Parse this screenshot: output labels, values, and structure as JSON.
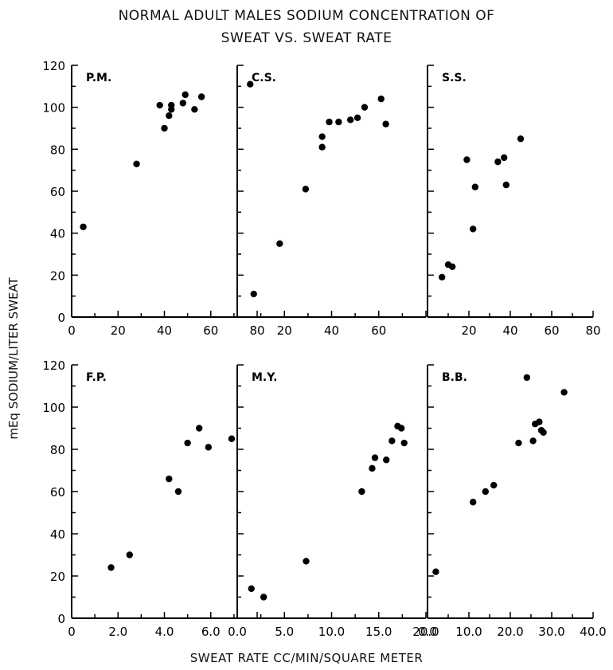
{
  "title_line1": "NORMAL ADULT MALES SODIUM CONCENTRATION OF",
  "title_line2": "SWEAT VS. SWEAT RATE",
  "ylabel": "mEq SODIUM/LITER SWEAT",
  "xlabel": "SWEAT RATE CC/MIN/SQUARE METER",
  "chart_data": [
    {
      "type": "scatter",
      "label": "P.M.",
      "xlim": [
        0,
        80
      ],
      "ylim": [
        0,
        120
      ],
      "xticks": [
        "0",
        "20",
        "40",
        "60",
        "80"
      ],
      "yticks": [
        "0",
        "20",
        "40",
        "60",
        "80",
        "100",
        "120"
      ],
      "points": [
        [
          5,
          43
        ],
        [
          28,
          73
        ],
        [
          38,
          101
        ],
        [
          40,
          90
        ],
        [
          42,
          96
        ],
        [
          43,
          101
        ],
        [
          43,
          99
        ],
        [
          48,
          102
        ],
        [
          49,
          106
        ],
        [
          53,
          99
        ],
        [
          56,
          105
        ],
        [
          77,
          111
        ]
      ]
    },
    {
      "type": "scatter",
      "label": "C.S.",
      "xlim": [
        0,
        80
      ],
      "ylim": [
        0,
        120
      ],
      "xticks": [
        "20",
        "40",
        "60"
      ],
      "yticks": [],
      "points": [
        [
          7,
          11
        ],
        [
          18,
          35
        ],
        [
          29,
          61
        ],
        [
          36,
          86
        ],
        [
          36,
          81
        ],
        [
          39,
          93
        ],
        [
          43,
          93
        ],
        [
          48,
          94
        ],
        [
          51,
          95
        ],
        [
          54,
          100
        ],
        [
          61,
          104
        ],
        [
          63,
          92
        ]
      ]
    },
    {
      "type": "scatter",
      "label": "S.S.",
      "xlim": [
        0,
        80
      ],
      "ylim": [
        0,
        120
      ],
      "xticks": [
        "20",
        "40",
        "60",
        "80"
      ],
      "yticks": [],
      "points": [
        [
          7,
          19
        ],
        [
          10,
          25
        ],
        [
          12,
          24
        ],
        [
          19,
          75
        ],
        [
          22,
          42
        ],
        [
          23,
          62
        ],
        [
          34,
          74
        ],
        [
          37,
          76
        ],
        [
          38,
          63
        ],
        [
          45,
          85
        ]
      ]
    },
    {
      "type": "scatter",
      "label": "F.P.",
      "xlim": [
        0,
        8
      ],
      "ylim": [
        0,
        120
      ],
      "xticks": [
        "0",
        "2.0",
        "4.0",
        "6.0"
      ],
      "yticks": [
        "0",
        "20",
        "40",
        "60",
        "80",
        "100",
        "120"
      ],
      "points": [
        [
          1.7,
          24
        ],
        [
          2.5,
          30
        ],
        [
          4.2,
          66
        ],
        [
          4.6,
          60
        ],
        [
          5.0,
          83
        ],
        [
          5.5,
          90
        ],
        [
          5.9,
          81
        ],
        [
          6.9,
          85
        ]
      ]
    },
    {
      "type": "scatter",
      "label": "M.Y.",
      "xlim": [
        0,
        20
      ],
      "ylim": [
        0,
        120
      ],
      "xticks": [
        "0.0",
        "5.0",
        "10.0",
        "15.0",
        "20.0"
      ],
      "yticks": [],
      "points": [
        [
          1.5,
          14
        ],
        [
          2.8,
          10
        ],
        [
          7.3,
          27
        ],
        [
          13.2,
          60
        ],
        [
          14.3,
          71
        ],
        [
          14.6,
          76
        ],
        [
          15.8,
          75
        ],
        [
          16.4,
          84
        ],
        [
          17.0,
          91
        ],
        [
          17.4,
          90
        ],
        [
          17.7,
          83
        ]
      ]
    },
    {
      "type": "scatter",
      "label": "B.B.",
      "xlim": [
        0,
        40
      ],
      "ylim": [
        0,
        120
      ],
      "xticks": [
        "0.0",
        "10.0",
        "20.0",
        "30.0",
        "40.0"
      ],
      "yticks": [],
      "points": [
        [
          2,
          22
        ],
        [
          11,
          55
        ],
        [
          14,
          60
        ],
        [
          16,
          63
        ],
        [
          22,
          83
        ],
        [
          24,
          114
        ],
        [
          25.5,
          84
        ],
        [
          26,
          92
        ],
        [
          27,
          93
        ],
        [
          27.5,
          89
        ],
        [
          28,
          88
        ],
        [
          33,
          107
        ]
      ]
    }
  ]
}
